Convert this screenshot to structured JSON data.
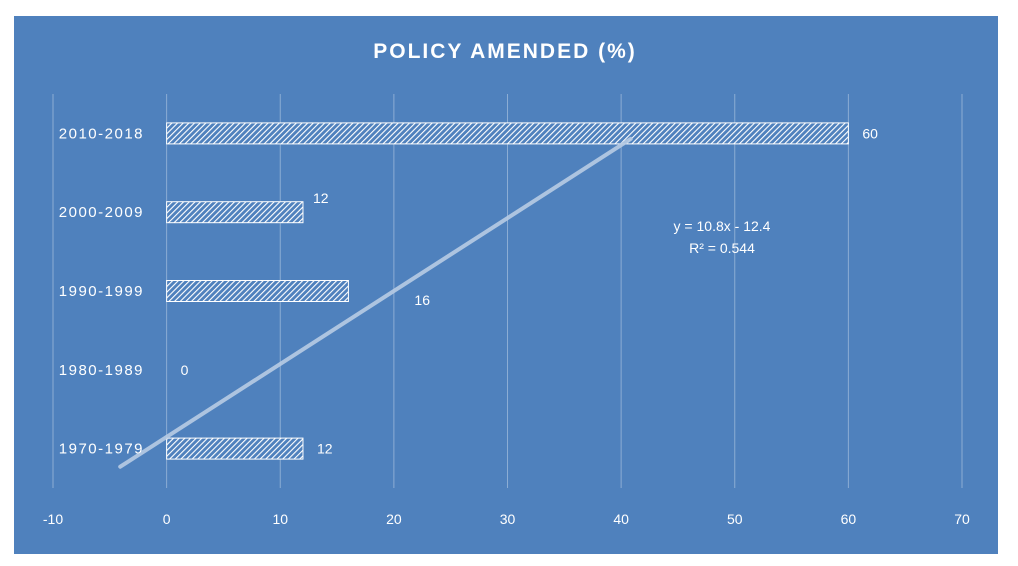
{
  "chart_data": {
    "type": "bar",
    "orientation": "horizontal",
    "title": "POLICY AMENDED (%)",
    "categories": [
      "1970-1979",
      "1980-1989",
      "1990-1999",
      "2000-2009",
      "2010-2018"
    ],
    "values": [
      12,
      0,
      16,
      12,
      60
    ],
    "data_labels": [
      "12",
      "0",
      "16",
      "12",
      "60"
    ],
    "xlim": [
      -10,
      70
    ],
    "x_ticks": [
      "-10",
      "0",
      "10",
      "20",
      "30",
      "40",
      "50",
      "60",
      "70"
    ],
    "grid": true,
    "bar_fill": "white diagonal hatch",
    "trendline": {
      "type": "linear",
      "equation": "y = 10.8x - 12.4",
      "r_squared": "R² = 0.544",
      "slope": 10.8,
      "intercept": -12.4
    }
  },
  "colors": {
    "background": "#4f81bd",
    "text": "#ffffff",
    "trendline": "#b8cce4"
  }
}
